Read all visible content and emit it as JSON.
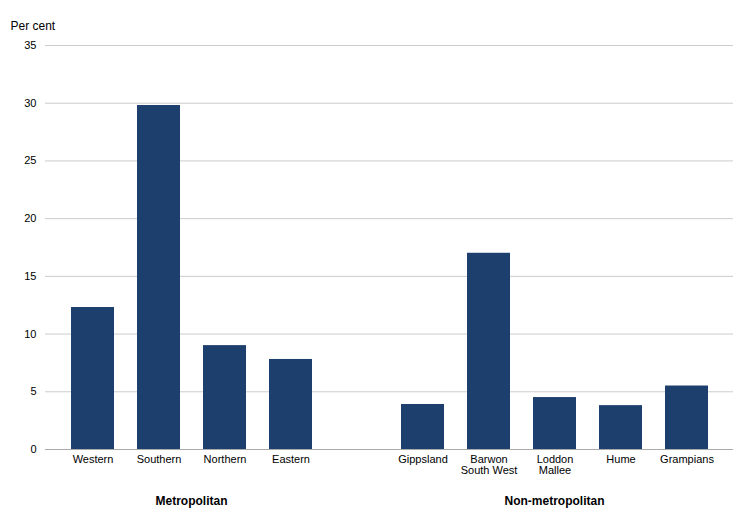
{
  "chart_data": {
    "type": "bar",
    "categories": [
      "Western",
      "Southern",
      "Northern",
      "Eastern",
      "Gippsland",
      "Barwon\nSouth West",
      "Loddon\nMallee",
      "Hume",
      "Grampians"
    ],
    "values": [
      12.3,
      29.8,
      9.0,
      7.8,
      3.9,
      17.0,
      4.5,
      3.8,
      5.5
    ],
    "color": "#1c3f6e",
    "y_label": "Per cent",
    "ylim": [
      0,
      35
    ],
    "yticks": [
      0,
      5,
      10,
      15,
      20,
      25,
      30,
      35
    ],
    "grid": true,
    "annotations": [
      {
        "text": "Metropolitan",
        "categories": [
          "Western",
          "Southern",
          "Northern",
          "Eastern"
        ]
      },
      {
        "text": "Non-metropolitan",
        "categories": [
          "Gippsland",
          "Barwon\nSouth West",
          "Loddon\nMallee",
          "Hume",
          "Grampians"
        ]
      }
    ]
  }
}
